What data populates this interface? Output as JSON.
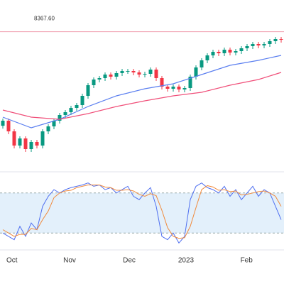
{
  "chart_data": [
    {
      "type": "candlestick",
      "up_color": "#089981",
      "down_color": "#f23645",
      "xlim": [
        -0.5,
        49.5
      ],
      "xticks": [
        {
          "value": 1.6,
          "label": "Oct"
        },
        {
          "value": 11.75,
          "label": "Nov"
        },
        {
          "value": 22.25,
          "label": "Dec"
        },
        {
          "value": 32.25,
          "label": "2023"
        },
        {
          "value": 42.9,
          "label": "Feb"
        }
      ],
      "ylim": [
        7000,
        8400
      ],
      "price_line": {
        "value": 8367.6,
        "label": "8367.60",
        "color": "#f0a0b0"
      },
      "open": [
        7440,
        7490,
        7385,
        7245,
        7315,
        7210,
        7280,
        7245,
        7385,
        7434,
        7490,
        7546,
        7574,
        7616,
        7644,
        7735,
        7840,
        7896,
        7910,
        7945,
        7924,
        7959,
        7980,
        7980,
        7966,
        7945,
        7952,
        7994,
        7910,
        7826,
        7805,
        7826,
        7798,
        7812,
        7924,
        8015,
        8085,
        8134,
        8169,
        8155,
        8190,
        8162,
        8176,
        8204,
        8225,
        8246,
        8232,
        8246,
        8274,
        8295
      ],
      "high": [
        7511,
        7511,
        7406,
        7336,
        7336,
        7301,
        7301,
        7406,
        7455,
        7511,
        7567,
        7595,
        7637,
        7665,
        7756,
        7861,
        7917,
        7931,
        7966,
        7966,
        7980,
        8001,
        8001,
        8001,
        7987,
        7973,
        8015,
        8015,
        7931,
        7847,
        7847,
        7847,
        7833,
        7945,
        8036,
        8106,
        8155,
        8190,
        8190,
        8211,
        8211,
        8197,
        8225,
        8246,
        8267,
        8267,
        8267,
        8295,
        8316,
        8316
      ],
      "low": [
        7412,
        7357,
        7217,
        7217,
        7182,
        7182,
        7217,
        7217,
        7357,
        7406,
        7462,
        7518,
        7546,
        7588,
        7616,
        7707,
        7812,
        7868,
        7882,
        7896,
        7896,
        7931,
        7952,
        7938,
        7917,
        7917,
        7924,
        7882,
        7798,
        7777,
        7777,
        7770,
        7770,
        7784,
        7896,
        7987,
        8057,
        8106,
        8127,
        8127,
        8134,
        8134,
        8148,
        8176,
        8197,
        8204,
        8204,
        8218,
        8246,
        8260
      ],
      "close": [
        7490,
        7385,
        7245,
        7315,
        7210,
        7280,
        7245,
        7385,
        7434,
        7490,
        7546,
        7574,
        7616,
        7644,
        7735,
        7840,
        7896,
        7910,
        7945,
        7924,
        7959,
        7980,
        7980,
        7966,
        7945,
        7952,
        7994,
        7910,
        7826,
        7805,
        7826,
        7798,
        7812,
        7924,
        8015,
        8085,
        8134,
        8169,
        8155,
        8190,
        8162,
        8176,
        8204,
        8225,
        8246,
        8232,
        8246,
        8274,
        8295,
        8288
      ],
      "series": [
        {
          "color": "#5b7ff0",
          "x": [
            0,
            5,
            10,
            15,
            20,
            25,
            30,
            35,
            40,
            45,
            49
          ],
          "values": [
            7525,
            7420,
            7504,
            7630,
            7735,
            7805,
            7854,
            7945,
            8036,
            8085,
            8134
          ]
        },
        {
          "color": "#f0507a",
          "x": [
            0,
            5,
            10,
            15,
            20,
            25,
            30,
            35,
            40,
            45,
            49
          ],
          "values": [
            7595,
            7525,
            7504,
            7560,
            7630,
            7686,
            7735,
            7770,
            7840,
            7896,
            7966
          ]
        }
      ]
    },
    {
      "type": "line",
      "ylim": [
        0,
        100
      ],
      "band": [
        20,
        80
      ],
      "band_color": "#e3f0fb",
      "series": [
        {
          "color": "#4f6ff0",
          "values": [
            20,
            15,
            10,
            30,
            15,
            35,
            25,
            60,
            75,
            85,
            80,
            85,
            88,
            90,
            92,
            95,
            90,
            92,
            85,
            88,
            80,
            85,
            90,
            75,
            70,
            80,
            88,
            60,
            15,
            10,
            20,
            5,
            15,
            70,
            90,
            95,
            88,
            85,
            80,
            90,
            75,
            85,
            70,
            80,
            90,
            75,
            85,
            80,
            60,
            40
          ]
        },
        {
          "color": "#f08a3c",
          "values": [
            25,
            20,
            15,
            18,
            18,
            27,
            25,
            40,
            53,
            73,
            80,
            83,
            84,
            88,
            90,
            92,
            92,
            92,
            89,
            88,
            84,
            84,
            85,
            83,
            78,
            75,
            79,
            76,
            54,
            28,
            15,
            12,
            13,
            30,
            58,
            85,
            91,
            89,
            84,
            85,
            82,
            83,
            77,
            78,
            80,
            82,
            83,
            80,
            75,
            60
          ]
        }
      ]
    }
  ]
}
